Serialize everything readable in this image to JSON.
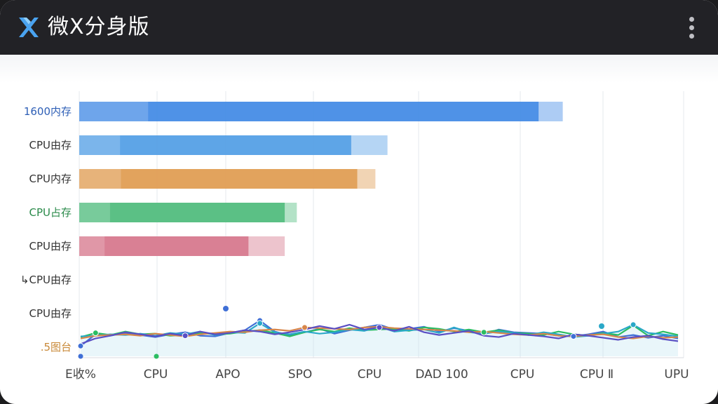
{
  "app": {
    "title": "微X分身版",
    "logo_icon": "x-logo-icon",
    "menu_icon": "more-vert-icon"
  },
  "colors": {
    "appbar": "#222226",
    "logo": "#4aa3f0",
    "blue": "#4a8ee6",
    "light_blue": "#5aa2e6",
    "orange": "#e0a058",
    "green": "#56be82",
    "pink": "#d87c90",
    "line_blue": "#3f6fd6",
    "line_green": "#2bbd62",
    "line_teal": "#2aa8c8",
    "line_orange": "#d8864a",
    "line_purple": "#5a4fc4"
  },
  "chart_data": {
    "type": "bar",
    "orientation": "horizontal",
    "categories": [
      "1600内存",
      "CPU由存",
      "CPU内存",
      "CPU占存",
      "CPU由存",
      "↳CPU由存",
      "CPU由存",
      ".5图台"
    ],
    "category_label_colors": [
      "#2e5fb6",
      "#333333",
      "#333333",
      "#2a8a4a",
      "#333333",
      "#333333",
      "#333333",
      "#c98a3a"
    ],
    "xlim": [
      0,
      100
    ],
    "grid": true,
    "series": [
      {
        "values": [
          76,
          45,
          46,
          34,
          28,
          null,
          null,
          null
        ]
      },
      {
        "values": [
          80,
          51,
          49,
          36,
          34,
          null,
          null,
          null
        ]
      }
    ],
    "x_tick_labels": [
      "E收%",
      "CPU",
      "APO",
      "SPO",
      "CPU",
      "DAD 100",
      "CPU",
      "CPU Ⅱ",
      "UPU"
    ],
    "lines": {
      "x": [
        0,
        1,
        2,
        3,
        4,
        5,
        6,
        7,
        8,
        9,
        10,
        11,
        12,
        13,
        14,
        15,
        16,
        17,
        18,
        19,
        20,
        21,
        22,
        23,
        24,
        25,
        26,
        27,
        28,
        29,
        30,
        31,
        32,
        33,
        34,
        35,
        36,
        37,
        38,
        39,
        40
      ],
      "y_range": [
        0,
        10
      ],
      "series": [
        {
          "values": [
            1.5,
            3.2,
            3.0,
            3.4,
            3.1,
            2.8,
            3.2,
            3.5,
            3.0,
            2.9,
            3.4,
            3.8,
            5.2,
            3.6,
            3.0,
            3.5,
            4.0,
            3.3,
            3.8,
            4.2,
            4.6,
            3.9,
            4.0,
            4.3,
            3.6,
            4.1,
            3.7,
            3.2,
            3.9,
            3.5,
            3.4,
            3.3,
            3.0,
            2.9,
            3.2,
            3.6,
            2.8,
            3.1,
            2.7,
            3.0,
            2.6
          ]
        },
        {
          "values": [
            2.8,
            3.4,
            3.1,
            3.6,
            3.2,
            3.3,
            3.0,
            3.1,
            3.4,
            3.2,
            3.3,
            3.6,
            3.8,
            3.4,
            2.9,
            3.5,
            3.9,
            3.6,
            4.1,
            3.8,
            3.9,
            4.0,
            3.7,
            4.2,
            4.0,
            3.6,
            3.9,
            3.5,
            3.8,
            3.4,
            3.3,
            3.1,
            3.6,
            3.2,
            3.0,
            3.4,
            3.1,
            4.5,
            3.0,
            3.6,
            3.1
          ]
        },
        {
          "values": [
            2.9,
            3.0,
            3.2,
            3.1,
            3.3,
            3.0,
            3.4,
            3.2,
            3.6,
            3.1,
            3.5,
            3.4,
            4.8,
            3.5,
            3.2,
            3.6,
            3.3,
            3.5,
            3.9,
            3.7,
            4.3,
            3.6,
            3.8,
            3.9,
            3.4,
            4.2,
            3.5,
            3.3,
            3.6,
            3.4,
            3.1,
            3.5,
            3.2,
            2.8,
            3.0,
            3.3,
            3.6,
            4.6,
            3.4,
            3.2,
            2.9
          ]
        },
        {
          "values": [
            2.6,
            3.0,
            3.1,
            3.2,
            3.0,
            3.3,
            3.1,
            2.9,
            3.2,
            3.4,
            3.6,
            3.5,
            3.8,
            3.9,
            3.7,
            4.2,
            4.1,
            4.0,
            3.9,
            4.2,
            4.3,
            4.1,
            4.0,
            3.9,
            3.8,
            3.7,
            3.5,
            3.6,
            3.4,
            3.2,
            3.1,
            3.3,
            3.0,
            2.9,
            3.1,
            3.2,
            2.8,
            2.6,
            2.9,
            2.7,
            2.8
          ]
        },
        {
          "values": [
            1.8,
            2.6,
            3.0,
            3.5,
            3.2,
            2.9,
            3.3,
            3.0,
            3.6,
            3.2,
            3.4,
            3.8,
            3.6,
            3.2,
            3.5,
            3.9,
            4.4,
            4.0,
            4.6,
            3.9,
            4.2,
            3.7,
            4.3,
            3.5,
            3.1,
            3.4,
            3.7,
            3.0,
            2.8,
            3.3,
            3.1,
            2.9,
            2.6,
            3.2,
            3.0,
            2.7,
            2.4,
            2.8,
            3.0,
            2.5,
            2.2
          ]
        }
      ]
    }
  }
}
